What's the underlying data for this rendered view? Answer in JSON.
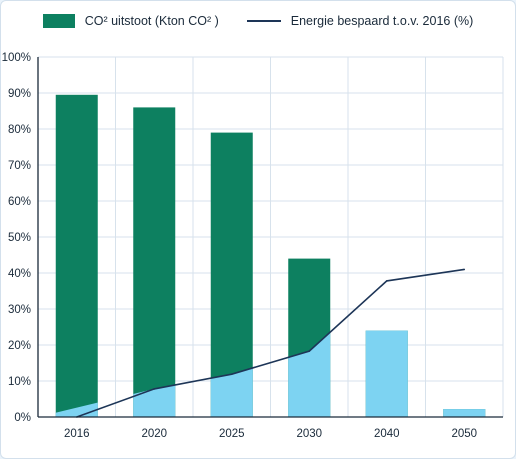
{
  "legend": {
    "bar_label": "CO² uitstoot (Kton CO² )",
    "line_label": "Energie bespaard t.o.v. 2016 (%)"
  },
  "colors": {
    "bar": "#0d8060",
    "bar_overlap": "#7dd3f2",
    "line": "#1d3557",
    "grid": "#d7e2ec",
    "axis": "#1a2a3a"
  },
  "chart_data": {
    "type": "bar",
    "categories": [
      "2016",
      "2020",
      "2025",
      "2030",
      "2040",
      "2050"
    ],
    "ylim": [
      0,
      100
    ],
    "yticks": [
      "0%",
      "10%",
      "20%",
      "30%",
      "40%",
      "50%",
      "60%",
      "70%",
      "80%",
      "90%",
      "100%"
    ],
    "grid": true,
    "legend_position": "top-center",
    "series": [
      {
        "name": "CO² uitstoot (Kton CO² )",
        "kind": "bar",
        "values": [
          89.5,
          86,
          79,
          44,
          24,
          2.2
        ]
      },
      {
        "name": "Energie bespaard t.o.v. 2016 (%)",
        "kind": "line",
        "values": [
          0,
          7.8,
          11.9,
          18.3,
          37.8,
          41
        ]
      }
    ]
  }
}
